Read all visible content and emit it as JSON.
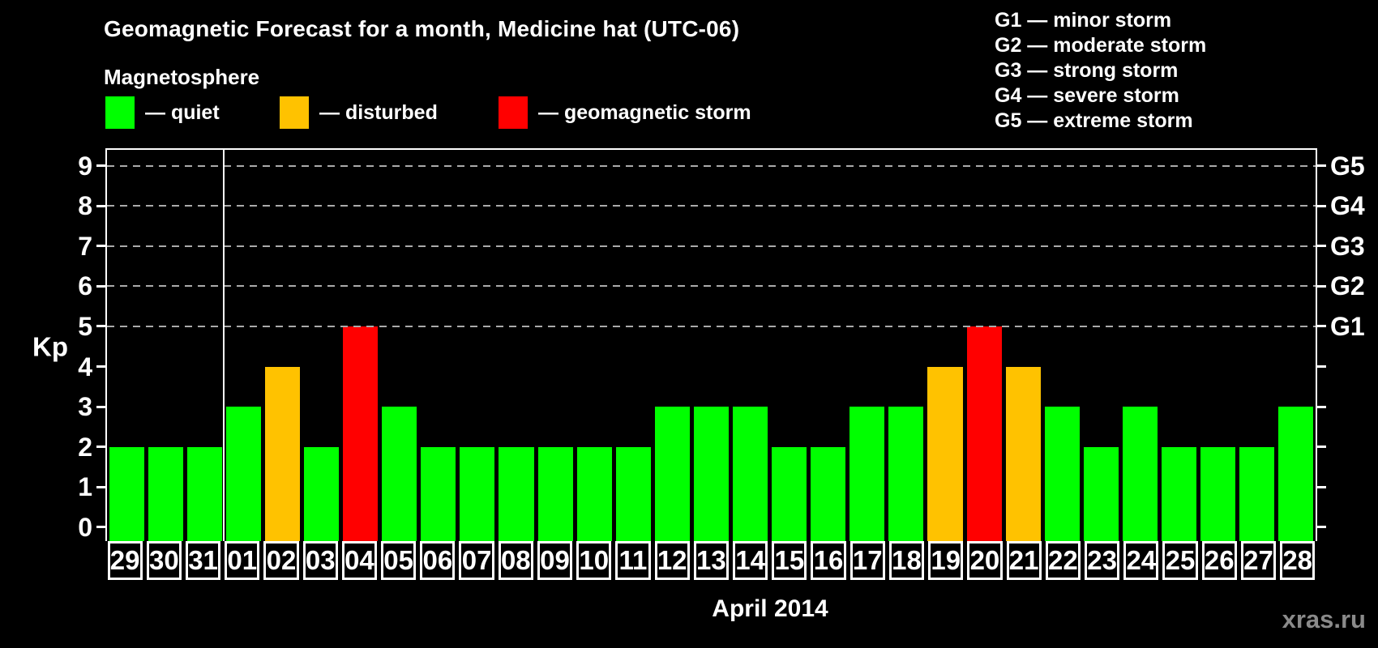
{
  "title": "Geomagnetic Forecast for a month, Medicine hat (UTC-06)",
  "subtitle": "Magnetosphere",
  "legend": {
    "items": [
      {
        "key": "quiet",
        "label": "— quiet",
        "color": "#00ff00"
      },
      {
        "key": "disturbed",
        "label": "— disturbed",
        "color": "#ffc200"
      },
      {
        "key": "storm",
        "label": "— geomagnetic storm",
        "color": "#ff0000"
      }
    ]
  },
  "storm_scale_legend": {
    "items": [
      "G1 — minor storm",
      "G2 — moderate storm",
      "G3 — strong storm",
      "G4 — severe storm",
      "G5 — extreme storm"
    ]
  },
  "watermark": "xras.ru",
  "chart_data": {
    "type": "bar",
    "title": "Geomagnetic Forecast for a month, Medicine hat (UTC-06)",
    "ylabel": "Kp",
    "xlabel": "April 2014",
    "ylim": [
      0,
      9
    ],
    "yticks": [
      0,
      1,
      2,
      3,
      4,
      5,
      6,
      7,
      8,
      9
    ],
    "gridlines_at": [
      5,
      6,
      7,
      8,
      9
    ],
    "grid": "dashed horizontal lines at storm levels only",
    "legend_position": "top",
    "right_axis": [
      {
        "label": "G1",
        "kp": 5
      },
      {
        "label": "G2",
        "kp": 6
      },
      {
        "label": "G3",
        "kp": 7
      },
      {
        "label": "G4",
        "kp": 8
      },
      {
        "label": "G5",
        "kp": 9
      }
    ],
    "status_colors": {
      "quiet": "#00ff00",
      "disturbed": "#ffc200",
      "storm": "#ff0000"
    },
    "month_separator_index": 3,
    "days": [
      {
        "day": "29",
        "kp": 2,
        "status": "quiet"
      },
      {
        "day": "30",
        "kp": 2,
        "status": "quiet"
      },
      {
        "day": "31",
        "kp": 2,
        "status": "quiet"
      },
      {
        "day": "01",
        "kp": 3,
        "status": "quiet"
      },
      {
        "day": "02",
        "kp": 4,
        "status": "disturbed"
      },
      {
        "day": "03",
        "kp": 2,
        "status": "quiet"
      },
      {
        "day": "04",
        "kp": 5,
        "status": "storm"
      },
      {
        "day": "05",
        "kp": 3,
        "status": "quiet"
      },
      {
        "day": "06",
        "kp": 2,
        "status": "quiet"
      },
      {
        "day": "07",
        "kp": 2,
        "status": "quiet"
      },
      {
        "day": "08",
        "kp": 2,
        "status": "quiet"
      },
      {
        "day": "09",
        "kp": 2,
        "status": "quiet"
      },
      {
        "day": "10",
        "kp": 2,
        "status": "quiet"
      },
      {
        "day": "11",
        "kp": 2,
        "status": "quiet"
      },
      {
        "day": "12",
        "kp": 3,
        "status": "quiet"
      },
      {
        "day": "13",
        "kp": 3,
        "status": "quiet"
      },
      {
        "day": "14",
        "kp": 3,
        "status": "quiet"
      },
      {
        "day": "15",
        "kp": 2,
        "status": "quiet"
      },
      {
        "day": "16",
        "kp": 2,
        "status": "quiet"
      },
      {
        "day": "17",
        "kp": 3,
        "status": "quiet"
      },
      {
        "day": "18",
        "kp": 3,
        "status": "quiet"
      },
      {
        "day": "19",
        "kp": 4,
        "status": "disturbed"
      },
      {
        "day": "20",
        "kp": 5,
        "status": "storm"
      },
      {
        "day": "21",
        "kp": 4,
        "status": "disturbed"
      },
      {
        "day": "22",
        "kp": 3,
        "status": "quiet"
      },
      {
        "day": "23",
        "kp": 2,
        "status": "quiet"
      },
      {
        "day": "24",
        "kp": 3,
        "status": "quiet"
      },
      {
        "day": "25",
        "kp": 2,
        "status": "quiet"
      },
      {
        "day": "26",
        "kp": 2,
        "status": "quiet"
      },
      {
        "day": "27",
        "kp": 2,
        "status": "quiet"
      },
      {
        "day": "28",
        "kp": 3,
        "status": "quiet"
      }
    ]
  }
}
